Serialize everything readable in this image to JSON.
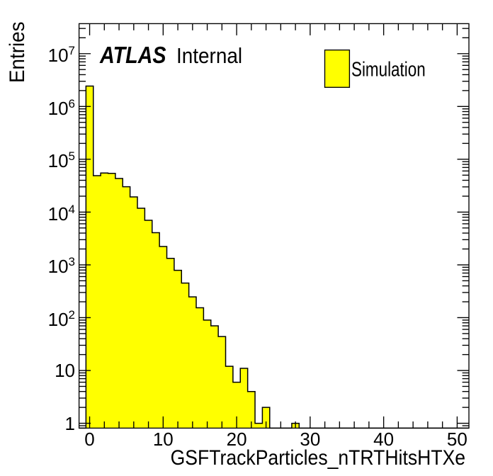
{
  "chart_data": {
    "type": "bar",
    "style": "root-histogram",
    "title": "",
    "xlabel": "GSFTrackParticles_nTRTHitsHTXe",
    "ylabel": "Entries",
    "x_bin_start": 0,
    "x_bin_width": 1,
    "values": [
      2430000,
      49000,
      55000,
      54000,
      43300,
      30200,
      19400,
      11800,
      7000,
      4070,
      2230,
      1330,
      790,
      452,
      248,
      154,
      90,
      70,
      44,
      12,
      6,
      11,
      4,
      1,
      2,
      0,
      0,
      0,
      1,
      0,
      0,
      0,
      0,
      0,
      0,
      0,
      0,
      0,
      0,
      0,
      0,
      0,
      0,
      0,
      0,
      0,
      0,
      0,
      0,
      0,
      0
    ],
    "xlim": [
      -1.44,
      51.6
    ],
    "ylim": [
      0.81,
      37000000
    ],
    "ylog": true,
    "grid": false,
    "x_major_ticks": [
      0,
      10,
      20,
      30,
      40,
      50
    ],
    "x_minor_step": 2,
    "y_major_ticks": [
      1,
      10,
      100,
      1000,
      10000,
      100000,
      1000000,
      10000000
    ],
    "bar_fill": "#ffff00",
    "line_color": "#000000",
    "background": "#ffffff",
    "legend_position": "top-right",
    "legend": {
      "label": "Simulation"
    },
    "annotation": {
      "brand": "ATLAS",
      "status": "Internal"
    }
  }
}
